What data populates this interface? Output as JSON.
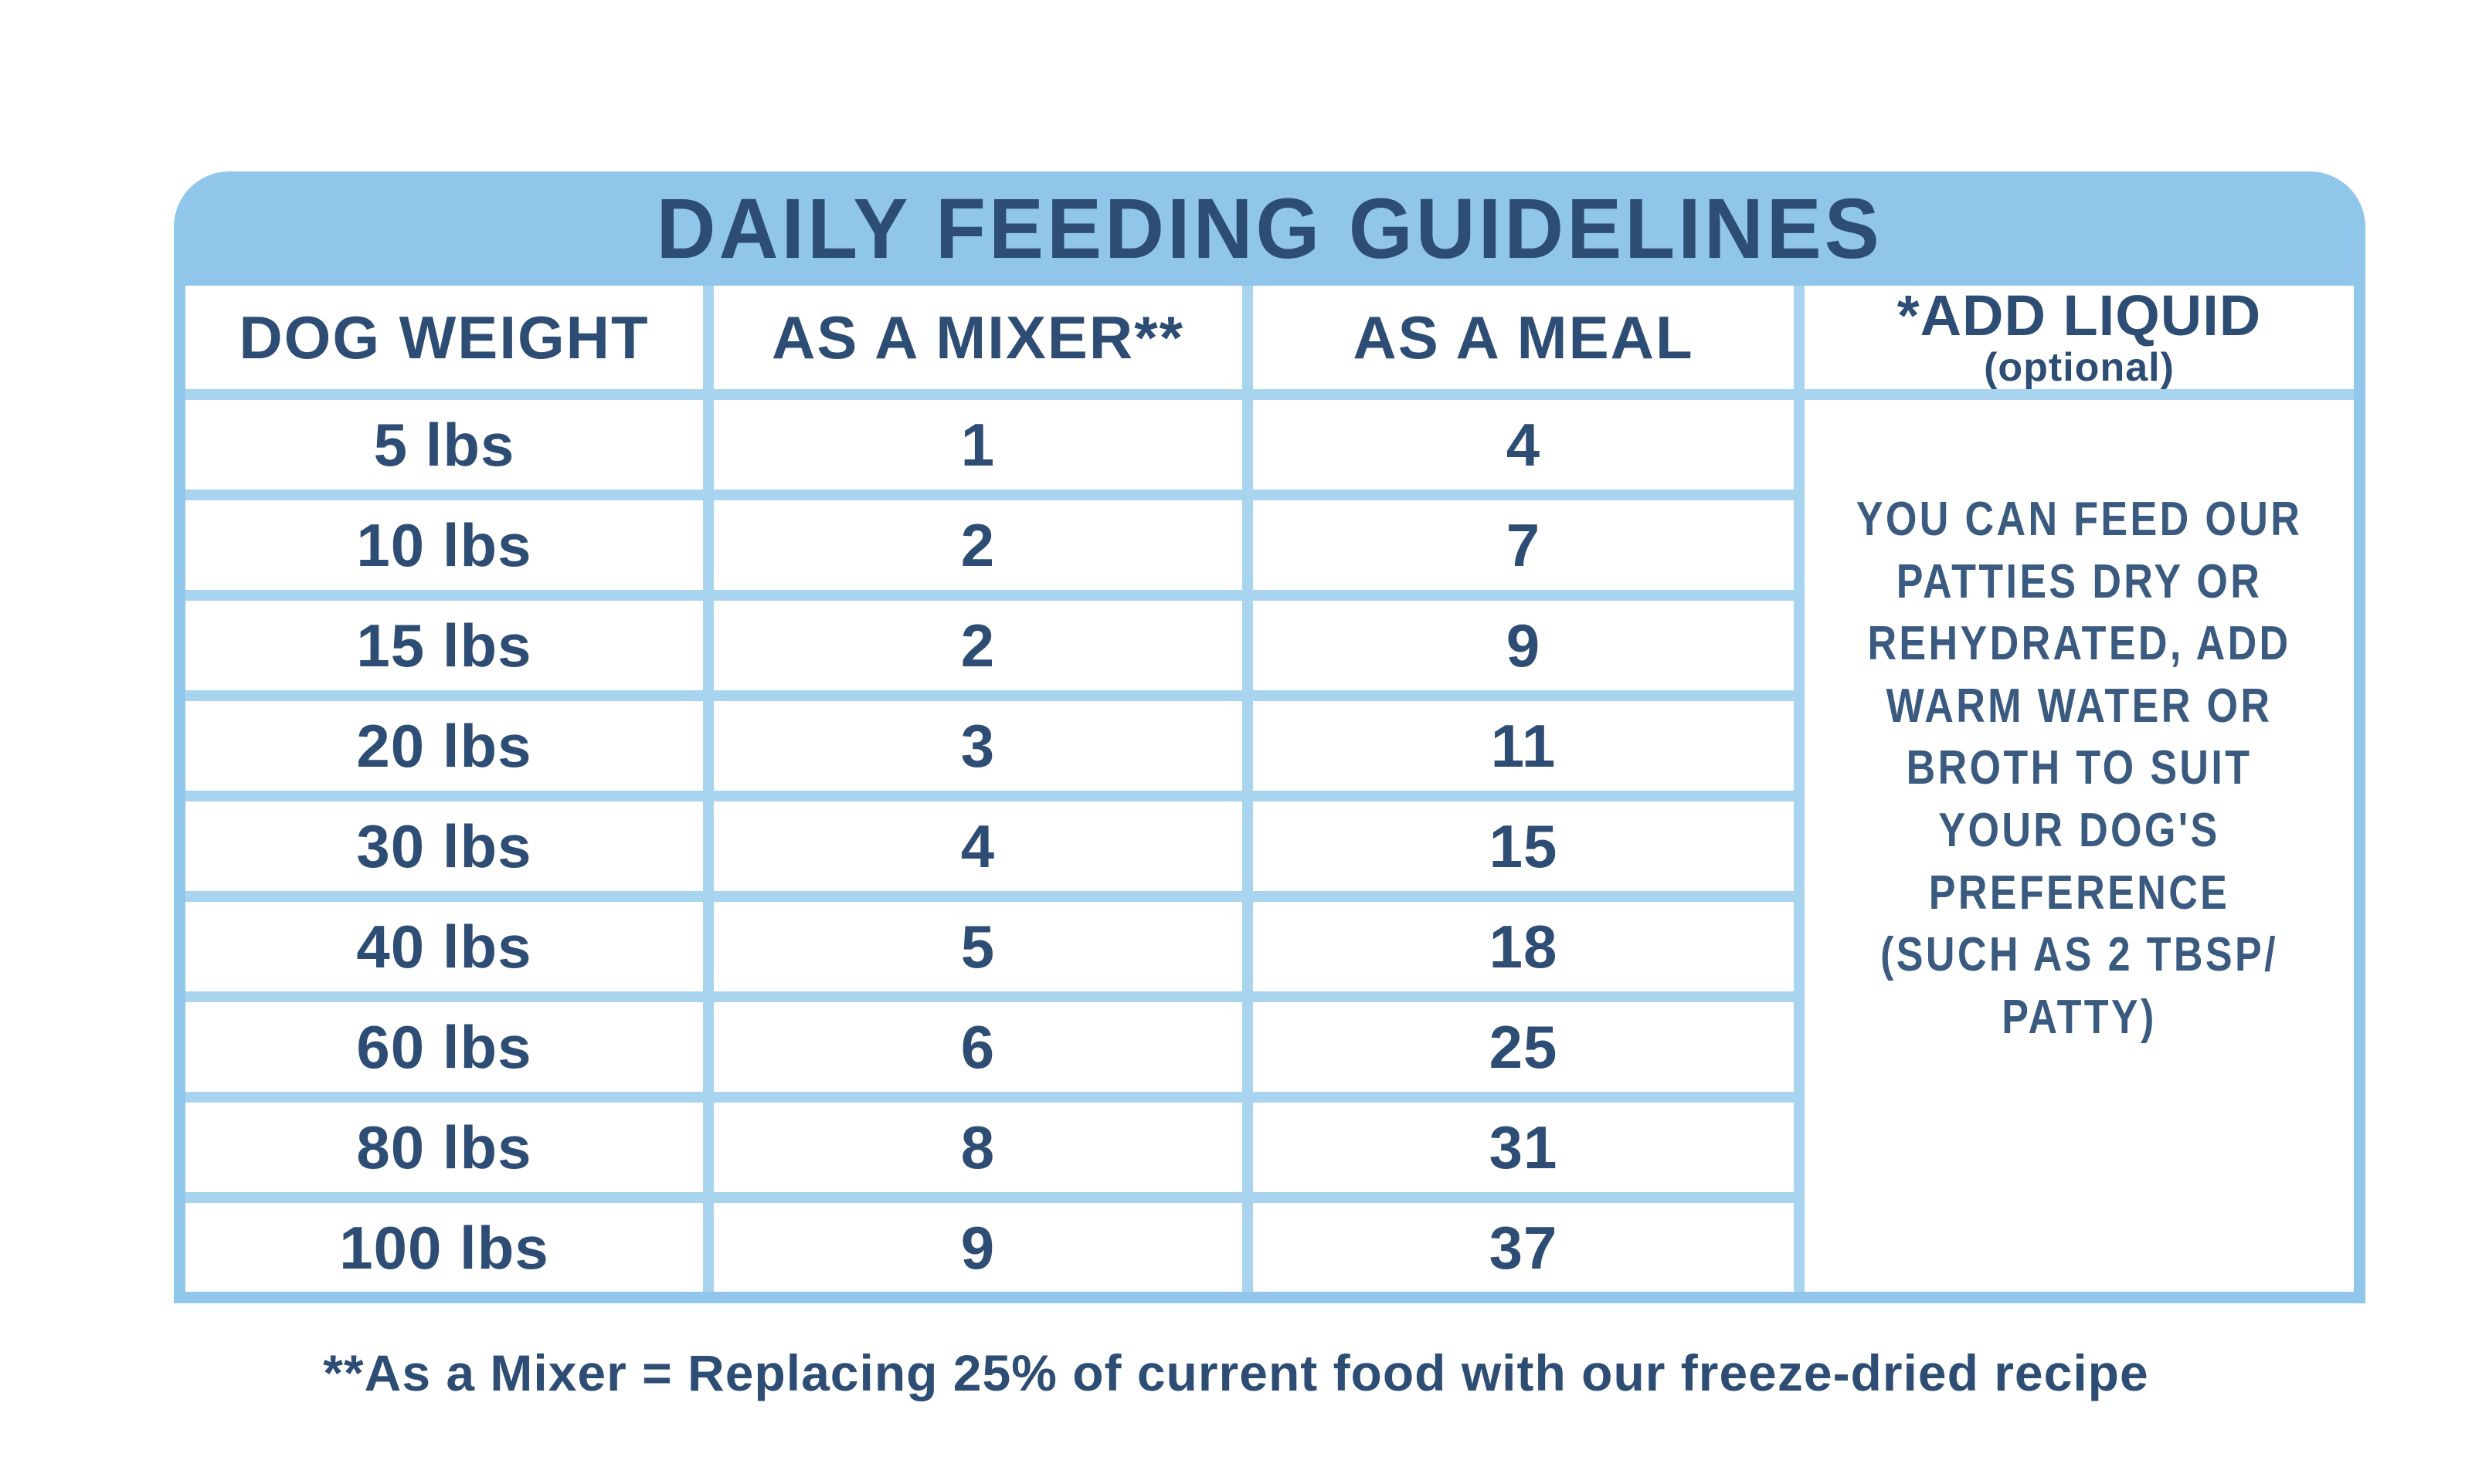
{
  "title": "DAILY FEEDING GUIDELINES",
  "colors": {
    "band_blue": "#90c6ea",
    "separator_blue": "#a8d4f0",
    "navy_text": "#2e4d74",
    "note_text": "#3a5a80",
    "cell_background": "#ffffff"
  },
  "table": {
    "headers": [
      "DOG WEIGHT",
      "AS A MIXER**",
      "AS A MEAL"
    ],
    "liquid_header": {
      "line1": "*ADD LIQUID",
      "line2": "(optional)"
    },
    "rows": [
      {
        "weight": "5 lbs",
        "mixer": "1",
        "meal": "4"
      },
      {
        "weight": "10 lbs",
        "mixer": "2",
        "meal": "7"
      },
      {
        "weight": "15 lbs",
        "mixer": "2",
        "meal": "9"
      },
      {
        "weight": "20 lbs",
        "mixer": "3",
        "meal": "11"
      },
      {
        "weight": "30 lbs",
        "mixer": "4",
        "meal": "15"
      },
      {
        "weight": "40 lbs",
        "mixer": "5",
        "meal": "18"
      },
      {
        "weight": "60 lbs",
        "mixer": "6",
        "meal": "25"
      },
      {
        "weight": "80 lbs",
        "mixer": "8",
        "meal": "31"
      },
      {
        "weight": "100 lbs",
        "mixer": "9",
        "meal": "37"
      }
    ],
    "note": "YOU CAN FEED OUR\nPATTIES DRY OR\nREHYDRATED, ADD\nWARM WATER OR\nBROTH TO SUIT\nYOUR DOG'S\nPREFERENCE\n(SUCH AS 2 TBSP/\nPATTY)"
  },
  "footnote": "**As a Mixer = Replacing 25% of current food with our freeze-dried recipe"
}
